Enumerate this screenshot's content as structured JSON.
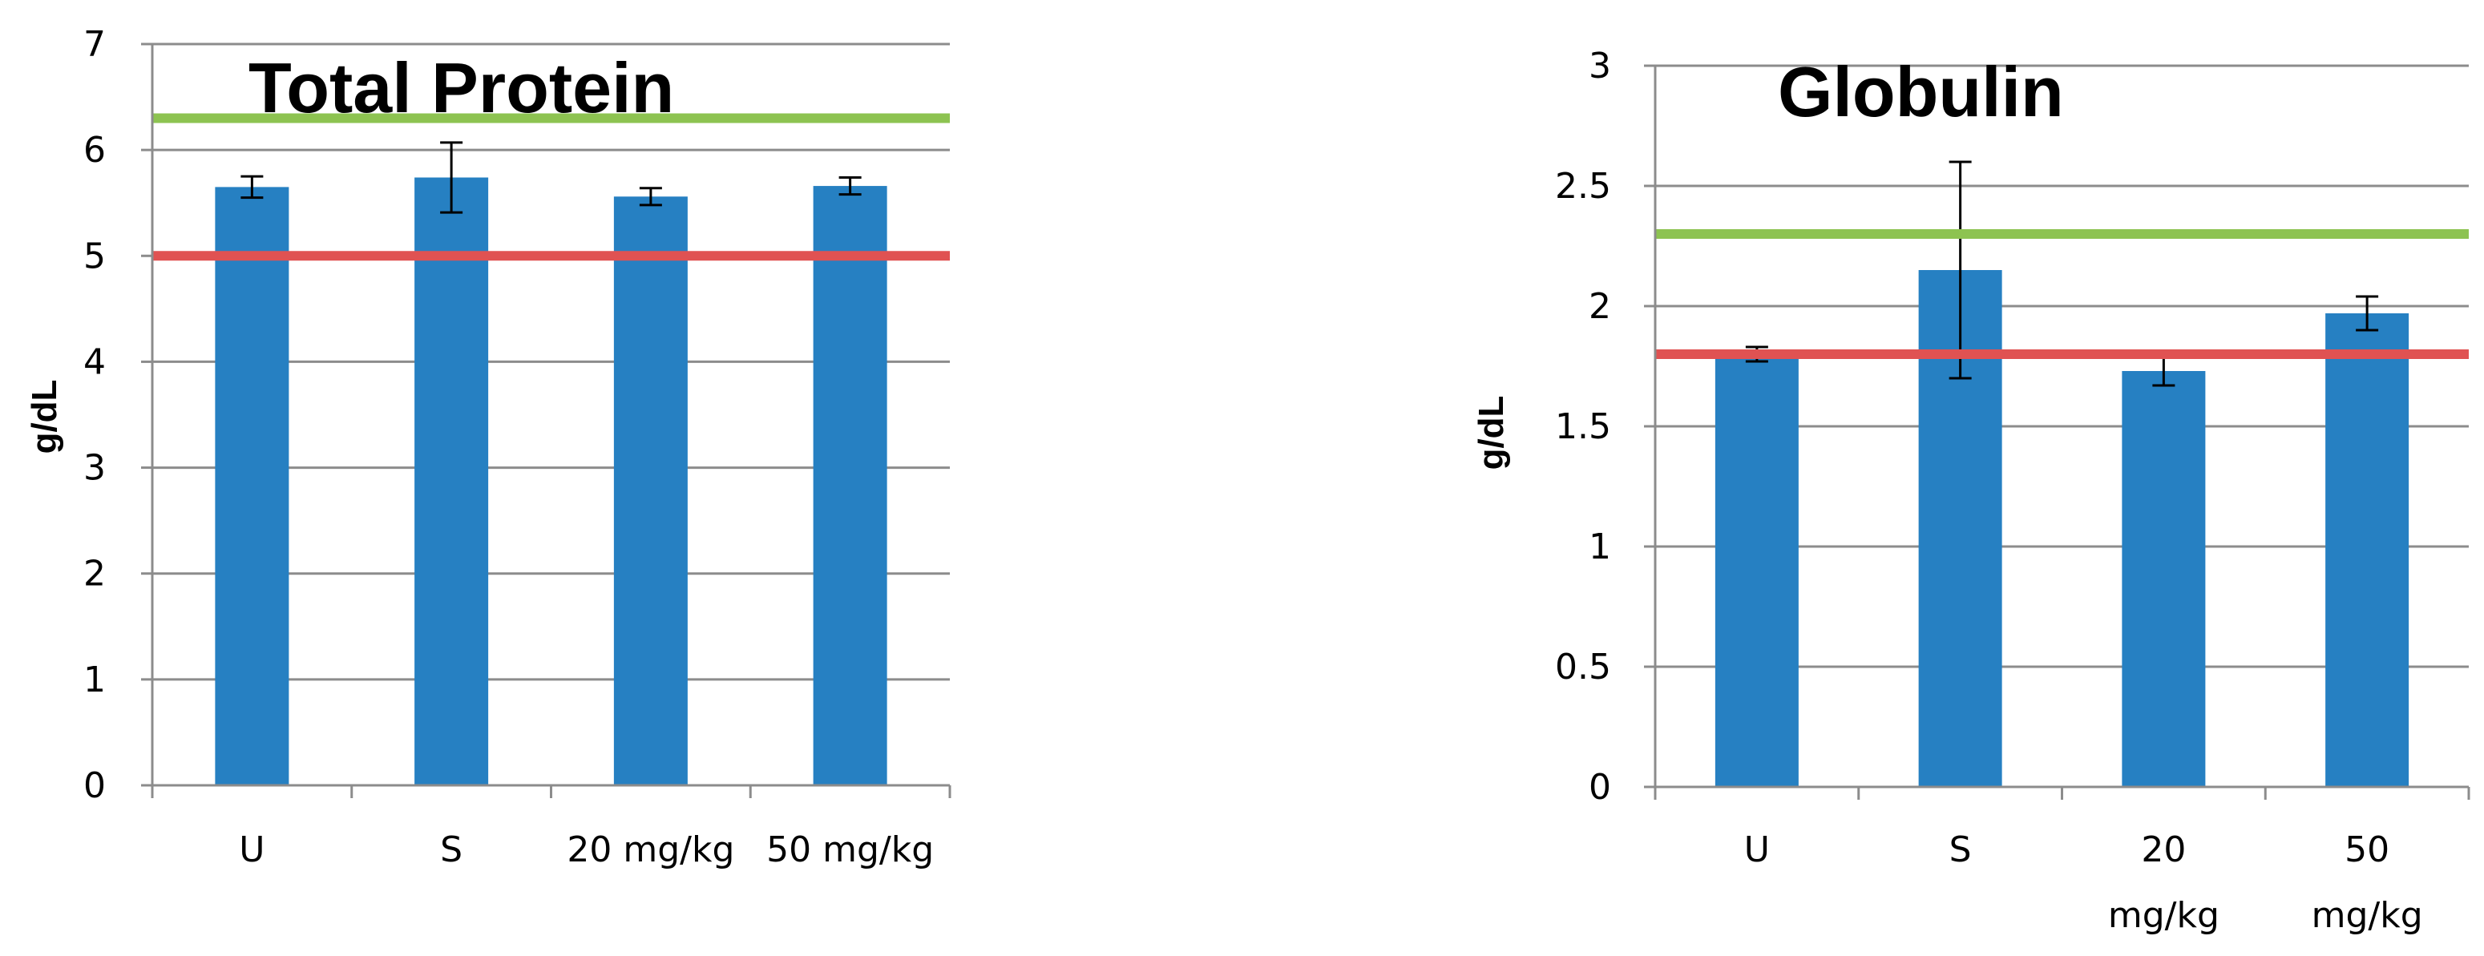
{
  "chart_data": [
    {
      "type": "bar",
      "title": "Total Protein",
      "xlabel": "",
      "ylabel": "g/dL",
      "ylim": [
        0,
        7
      ],
      "yticks": [
        "0",
        "1",
        "2",
        "3",
        "4",
        "5",
        "6",
        "7"
      ],
      "ytick_values": [
        0,
        1,
        2,
        3,
        4,
        5,
        6,
        7
      ],
      "categories": [
        "U",
        "S",
        "20 mg/kg",
        "50 mg/kg"
      ],
      "category_lines": [
        [
          "U"
        ],
        [
          "S"
        ],
        [
          "20 mg/kg"
        ],
        [
          "50 mg/kg"
        ]
      ],
      "values": [
        5.65,
        5.74,
        5.56,
        5.66
      ],
      "errors": [
        0.1,
        0.33,
        0.08,
        0.08
      ],
      "reference_lines": [
        {
          "name": "upper reference",
          "value": 6.3,
          "color": "#8dc351"
        },
        {
          "name": "lower reference",
          "value": 5.0,
          "color": "#e05252"
        }
      ],
      "grid": true,
      "bar_color": "#2680c2"
    },
    {
      "type": "bar",
      "title": "Globulin",
      "xlabel": "",
      "ylabel": "g/dL",
      "ylim": [
        0,
        3
      ],
      "yticks": [
        "0",
        "0.5",
        "1",
        "1.5",
        "2",
        "2.5",
        "3"
      ],
      "ytick_values": [
        0,
        0.5,
        1,
        1.5,
        2,
        2.5,
        3
      ],
      "categories": [
        "U",
        "S",
        "20 mg/kg",
        "50 mg/kg"
      ],
      "category_lines": [
        [
          "U"
        ],
        [
          "S"
        ],
        [
          "20",
          "mg/kg"
        ],
        [
          "50",
          "mg/kg"
        ]
      ],
      "values": [
        1.8,
        2.15,
        1.73,
        1.97
      ],
      "errors": [
        0.03,
        0.45,
        0.06,
        0.07
      ],
      "reference_lines": [
        {
          "name": "upper reference",
          "value": 2.3,
          "color": "#8dc351"
        },
        {
          "name": "lower reference",
          "value": 1.8,
          "color": "#e05252"
        }
      ],
      "grid": true,
      "bar_color": "#2680c2"
    }
  ]
}
